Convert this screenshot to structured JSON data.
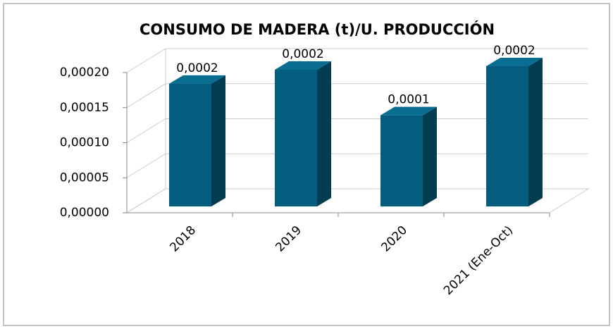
{
  "chart_data": {
    "type": "bar3d",
    "title": "CONSUMO DE MADERA (t)/U. PRODUCCIÓN",
    "categories": [
      "2018",
      "2019",
      "2020",
      "2021 (Ene-Oct)"
    ],
    "values": [
      0.000175,
      0.000195,
      0.00013,
      0.0002
    ],
    "value_labels": [
      "0,0002",
      "0,0002",
      "0,0001",
      "0,0002"
    ],
    "color": "#045d7e",
    "ylim": [
      0,
      0.0002
    ],
    "yticks": [
      {
        "value": 0,
        "label": "0,00000"
      },
      {
        "value": 5e-05,
        "label": "0,00005"
      },
      {
        "value": 0.0001,
        "label": "0,00010"
      },
      {
        "value": 0.00015,
        "label": "0,00015"
      },
      {
        "value": 0.0002,
        "label": "0,00020"
      }
    ],
    "grid": true
  }
}
